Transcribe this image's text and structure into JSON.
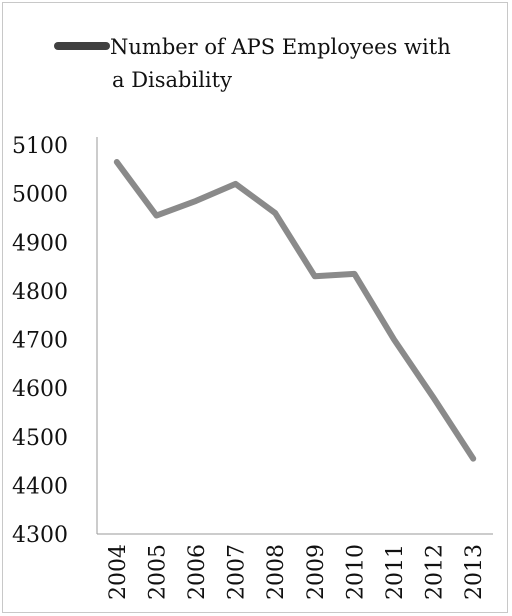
{
  "chart_data": {
    "type": "line",
    "title": "",
    "xlabel": "",
    "ylabel": "",
    "categories": [
      "2004",
      "2005",
      "2006",
      "2007",
      "2008",
      "2009",
      "2010",
      "2011",
      "2012",
      "2013"
    ],
    "series": [
      {
        "name": "Number of APS Employees with a Disability",
        "values": [
          5065,
          4955,
          4985,
          5020,
          4960,
          4830,
          4835,
          4700,
          4580,
          4455
        ],
        "color": "#8a8a8a",
        "legend_color": "#404040"
      }
    ],
    "y_ticks": [
      "5100",
      "5000",
      "4900",
      "4800",
      "4700",
      "4600",
      "4500",
      "4400",
      "4300"
    ],
    "ylim": [
      4300,
      5100
    ],
    "grid": false,
    "legend": "top",
    "legend_lines": [
      "Number of APS Employees with",
      "a Disability"
    ]
  }
}
